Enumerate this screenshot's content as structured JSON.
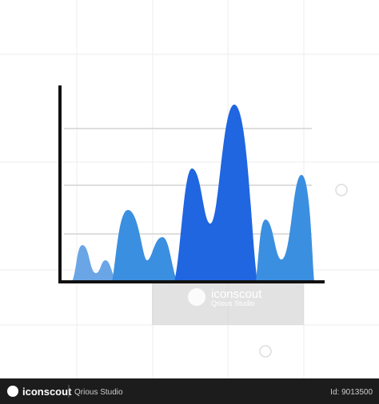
{
  "watermark": {
    "brand": "iconscout",
    "author": "Qrious Studio"
  },
  "footer": {
    "brand": "iconscout",
    "author": "Qrious Studio",
    "id": "Id: 9013500"
  }
}
